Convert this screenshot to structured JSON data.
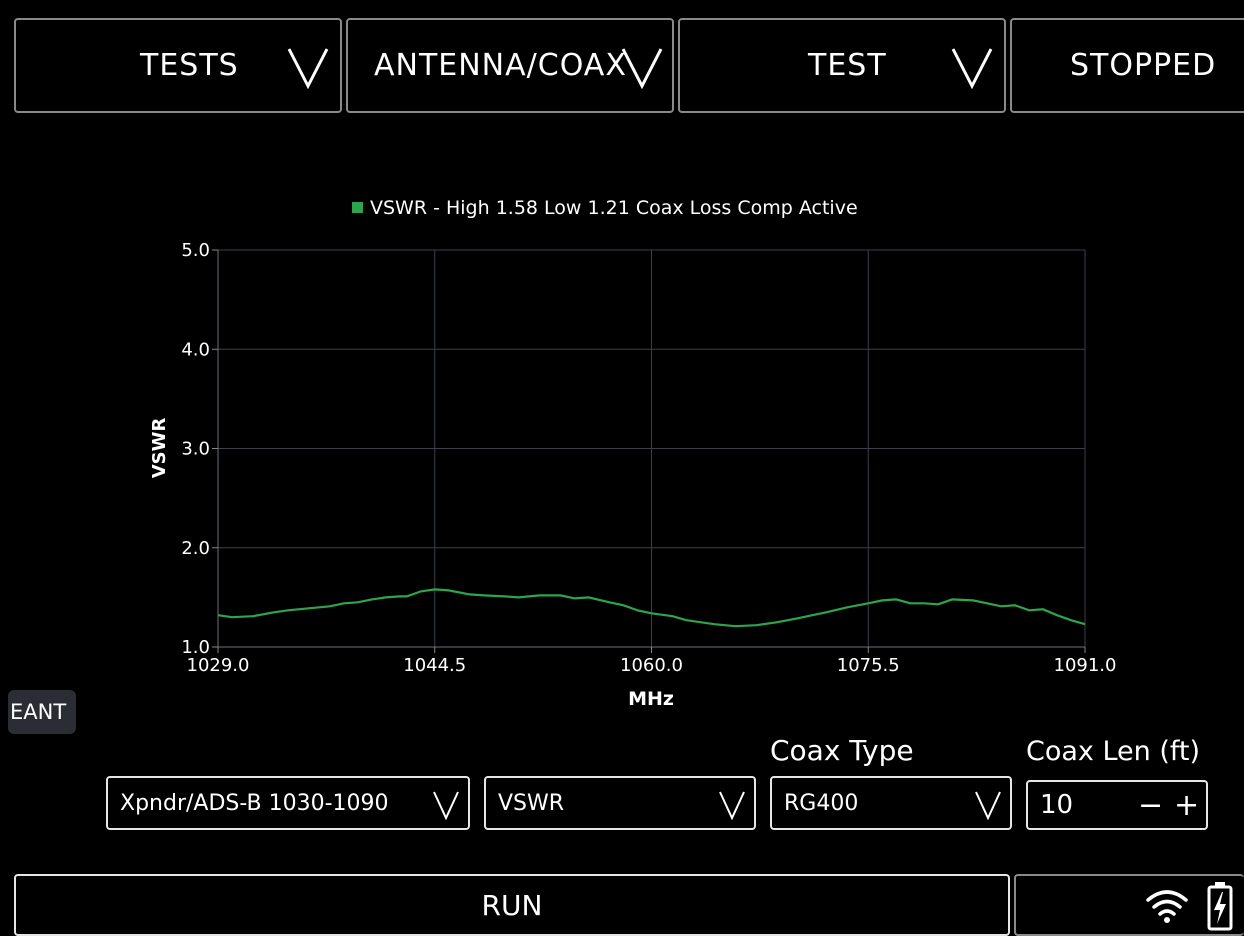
{
  "top_menu": {
    "tests": "TESTS",
    "mode": "ANTENNA/COAX",
    "test": "TEST",
    "state": "STOPPED"
  },
  "chart_data": {
    "type": "line",
    "legend": "VSWR - High 1.58 Low 1.21 Coax Loss Comp Active",
    "xlabel": "MHz",
    "ylabel": "VSWR",
    "xlim": [
      1029.0,
      1091.0
    ],
    "ylim": [
      1.0,
      5.0
    ],
    "x_ticks": [
      "1029.0",
      "1044.5",
      "1060.0",
      "1075.5",
      "1091.0"
    ],
    "y_ticks": [
      "1.0",
      "2.0",
      "3.0",
      "4.0",
      "5.0"
    ],
    "grid": true,
    "series": [
      {
        "color": "#2ea44f",
        "x": [
          1029.0,
          1030.0,
          1031.5,
          1033.0,
          1034.0,
          1035.5,
          1037.0,
          1038.0,
          1039.0,
          1040.0,
          1041.0,
          1042.0,
          1042.5,
          1043.5,
          1044.5,
          1045.5,
          1047.0,
          1048.0,
          1049.5,
          1050.5,
          1052.0,
          1053.5,
          1054.5,
          1055.5,
          1057.0,
          1058.0,
          1059.0,
          1060.0,
          1061.5,
          1062.5,
          1063.5,
          1064.5,
          1066.0,
          1067.5,
          1069.0,
          1070.5,
          1071.5,
          1072.5,
          1074.0,
          1075.5,
          1076.5,
          1077.5,
          1078.5,
          1079.5,
          1080.5,
          1081.5,
          1083.0,
          1084.0,
          1085.0,
          1086.0,
          1087.0,
          1088.0,
          1089.0,
          1090.0,
          1091.0
        ],
        "y": [
          1.32,
          1.3,
          1.31,
          1.35,
          1.37,
          1.39,
          1.41,
          1.44,
          1.45,
          1.48,
          1.5,
          1.51,
          1.51,
          1.56,
          1.58,
          1.57,
          1.53,
          1.52,
          1.51,
          1.5,
          1.52,
          1.52,
          1.49,
          1.5,
          1.45,
          1.42,
          1.37,
          1.34,
          1.31,
          1.27,
          1.25,
          1.23,
          1.21,
          1.22,
          1.25,
          1.29,
          1.32,
          1.35,
          1.4,
          1.44,
          1.47,
          1.48,
          1.44,
          1.44,
          1.43,
          1.48,
          1.47,
          1.44,
          1.41,
          1.42,
          1.37,
          1.38,
          1.32,
          1.27,
          1.23
        ]
      }
    ]
  },
  "side_tab": {
    "label": "EANT"
  },
  "controls": {
    "band_select": "Xpndr/ADS-B 1030-1090",
    "measure_select": "VSWR",
    "coax_type_label": "Coax Type",
    "coax_type_value": "RG400",
    "coax_len_label": "Coax Len (ft)",
    "coax_len_value": "10",
    "minus_symbol": "−",
    "plus_symbol": "+"
  },
  "footer": {
    "run_label": "RUN",
    "icons": [
      "wifi-icon",
      "battery-charging-icon"
    ]
  }
}
